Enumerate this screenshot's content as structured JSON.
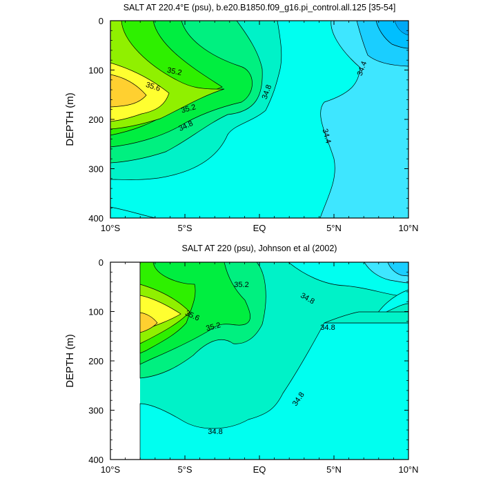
{
  "chart_data": [
    {
      "type": "contour",
      "title": "SALT AT 220.4°E (psu), b.e20.B1850.f09_g16.pi_control.all.125 [35-54]",
      "xlabel": "",
      "ylabel": "DEPTH (m)",
      "xlim": [
        -10,
        10
      ],
      "ylim": [
        400,
        0
      ],
      "xticks": [
        {
          "value": -10,
          "label": "10°S"
        },
        {
          "value": -5,
          "label": "5°S"
        },
        {
          "value": 0,
          "label": "EQ"
        },
        {
          "value": 5,
          "label": "5°N"
        },
        {
          "value": 10,
          "label": "10°N"
        }
      ],
      "yticks": [
        {
          "value": 0,
          "label": "0"
        },
        {
          "value": 100,
          "label": "100"
        },
        {
          "value": 200,
          "label": "200"
        },
        {
          "value": 300,
          "label": "300"
        },
        {
          "value": 400,
          "label": "400"
        }
      ],
      "fill_colors": [
        "#00BFFF",
        "#1ACEFF",
        "#3EE6FF",
        "#00FFF0",
        "#00F2C8",
        "#00F080",
        "#00EE40",
        "#2EF000",
        "#90F000",
        "#FFFF30",
        "#FFD030"
      ],
      "contour_labels": [
        {
          "text": "35.2",
          "x": -4.8,
          "y": 97
        },
        {
          "text": "35.6",
          "x": -6.8,
          "y": 130
        },
        {
          "text": "35.2",
          "x": -4.6,
          "y": 173
        },
        {
          "text": "34.8",
          "x": -5.1,
          "y": 207
        },
        {
          "text": "34.8",
          "x": 0.3,
          "y": 146
        },
        {
          "text": "34.4",
          "x": 4.6,
          "y": 233
        },
        {
          "text": "34.4",
          "x": 7.5,
          "y": 98
        }
      ]
    },
    {
      "type": "contour",
      "title": "SALT AT 220 (psu), Johnson et al (2002)",
      "xlabel": "",
      "ylabel": "DEPTH (m)",
      "xlim": [
        -10,
        10
      ],
      "ylim": [
        400,
        0
      ],
      "xticks": [
        {
          "value": -10,
          "label": "10°S"
        },
        {
          "value": -5,
          "label": "5°S"
        },
        {
          "value": 0,
          "label": "EQ"
        },
        {
          "value": 5,
          "label": "5°N"
        },
        {
          "value": 10,
          "label": "10°N"
        }
      ],
      "yticks": [
        {
          "value": 0,
          "label": "0"
        },
        {
          "value": 100,
          "label": "100"
        },
        {
          "value": 200,
          "label": "200"
        },
        {
          "value": 300,
          "label": "300"
        },
        {
          "value": 400,
          "label": "400"
        }
      ],
      "fill_colors": [
        "#00BFFF",
        "#1ACEFF",
        "#3EE6FF",
        "#00FFF0",
        "#00F2C8",
        "#00F080",
        "#00EE40",
        "#2EF000",
        "#90F000",
        "#FFFF30",
        "#FFD030"
      ],
      "contour_labels": [
        {
          "text": "35.2",
          "x": -1.3,
          "y": 47
        },
        {
          "text": "34.8",
          "x": 3.1,
          "y": 77
        },
        {
          "text": "35.6",
          "x": -5.0,
          "y": 108
        },
        {
          "text": "35.2",
          "x": -3.2,
          "y": 128
        },
        {
          "text": "34.8",
          "x": 4.5,
          "y": 136
        },
        {
          "text": "34.8",
          "x": 2.6,
          "y": 280
        },
        {
          "text": "34.8",
          "x": -2.6,
          "y": 345
        }
      ]
    }
  ]
}
